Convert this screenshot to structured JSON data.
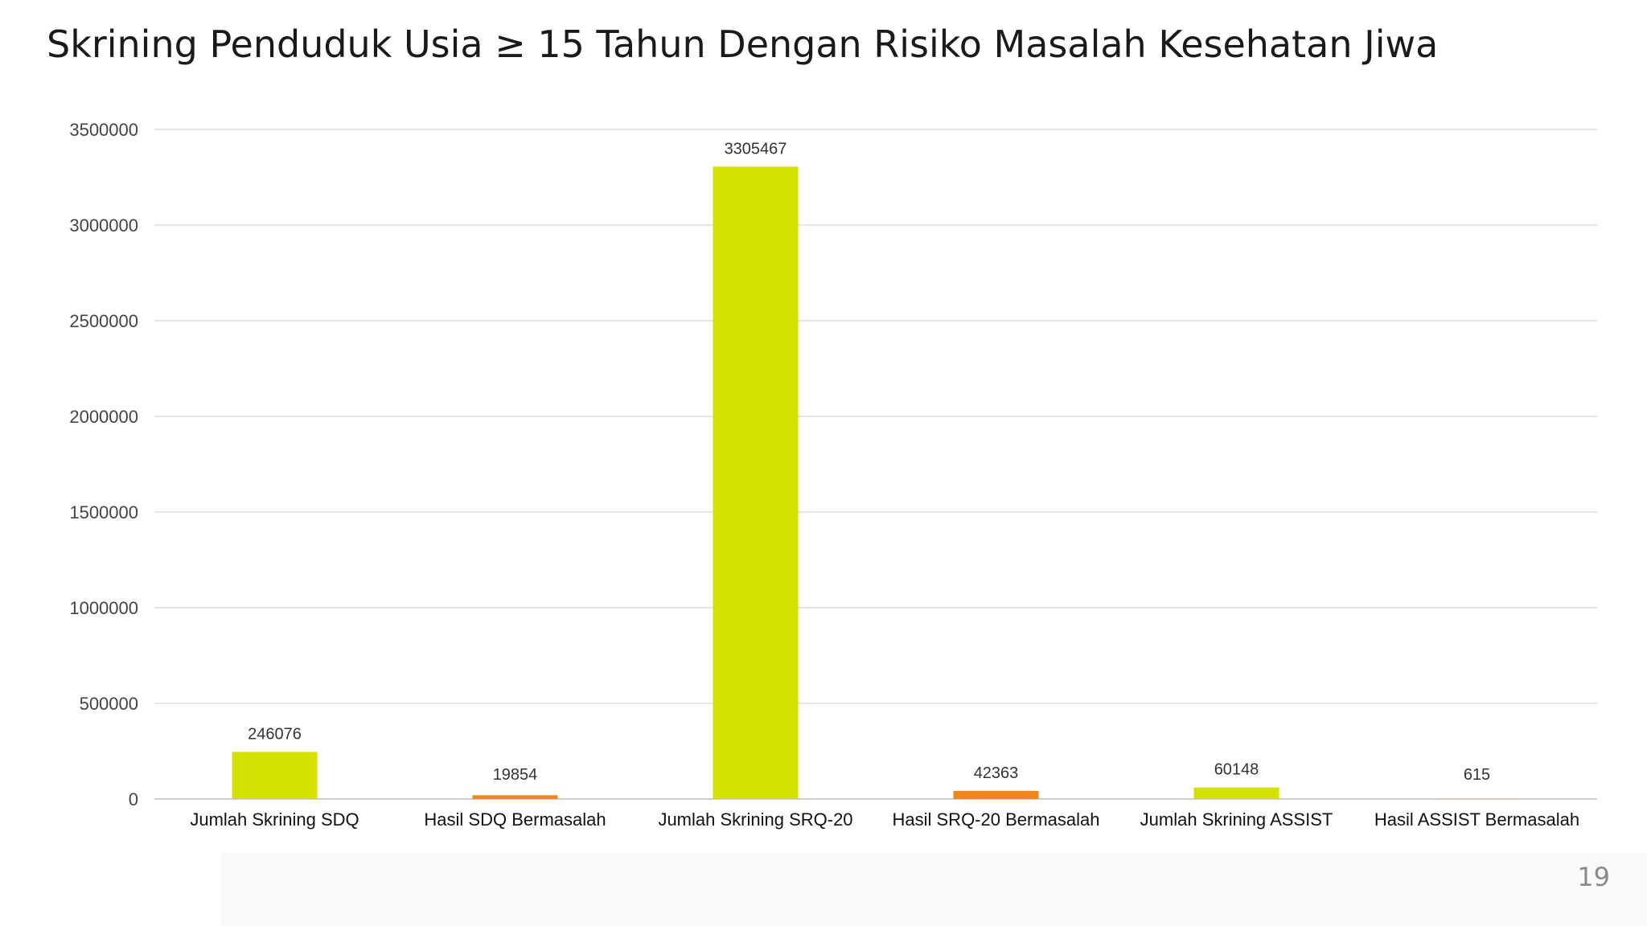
{
  "slide": {
    "title": "Skrining Penduduk Usia ≥ 15 Tahun Dengan Risiko Masalah Kesehatan Jiwa",
    "page_number": "19"
  },
  "chart_data": {
    "type": "bar",
    "categories": [
      "Jumlah Skrining SDQ",
      "Hasil SDQ Bermasalah",
      "Jumlah Skrining SRQ-20",
      "Hasil SRQ-20 Bermasalah",
      "Jumlah Skrining ASSIST",
      "Hasil ASSIST Bermasalah"
    ],
    "values": [
      246076,
      19854,
      3305467,
      42363,
      60148,
      615
    ],
    "bar_colors": [
      "#d4e000",
      "#f0861e",
      "#d4e000",
      "#f0861e",
      "#d4e000",
      "#f0861e"
    ],
    "data_labels": [
      "246076",
      "19854",
      "3305467",
      "42363",
      "60148",
      "615"
    ],
    "yticks": [
      0,
      500000,
      1000000,
      1500000,
      2000000,
      2500000,
      3000000,
      3500000
    ],
    "ylim": [
      0,
      3500000
    ],
    "grid": true,
    "legend": "none",
    "title": "",
    "xlabel": "",
    "ylabel": ""
  }
}
